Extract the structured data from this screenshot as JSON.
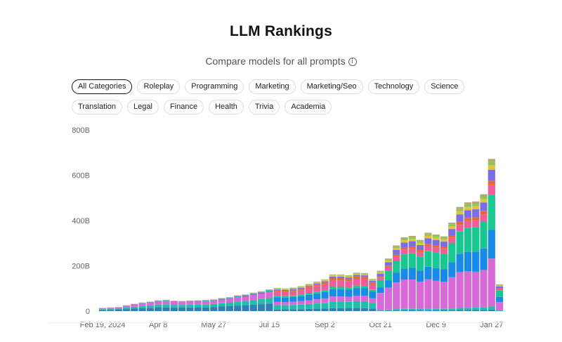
{
  "header": {
    "title": "LLM Rankings",
    "subtitle": "Compare models for all prompts",
    "info_icon": "i"
  },
  "filters": {
    "row1": [
      "All Categories",
      "Roleplay",
      "Programming",
      "Marketing",
      "Marketing/Seo",
      "Technology",
      "Science"
    ],
    "row2": [
      "Translation",
      "Legal",
      "Finance",
      "Health",
      "Trivia",
      "Academia"
    ],
    "active": "All Categories"
  },
  "chart_data": {
    "type": "bar",
    "stacked": true,
    "title": "",
    "xlabel": "",
    "ylabel": "",
    "ylim": [
      0,
      800
    ],
    "y_ticks": [
      0,
      200,
      400,
      600,
      800
    ],
    "y_tick_labels": [
      "0",
      "200B",
      "400B",
      "600B",
      "800B"
    ],
    "x_tick_labels": [
      {
        "index": 0,
        "label": "Feb 19, 2024"
      },
      {
        "index": 7,
        "label": "Apr 8"
      },
      {
        "index": 14,
        "label": "May 27"
      },
      {
        "index": 21,
        "label": "Jul 15"
      },
      {
        "index": 28,
        "label": "Sep 2"
      },
      {
        "index": 35,
        "label": "Oct 21"
      },
      {
        "index": 42,
        "label": "Dec 9"
      },
      {
        "index": 49,
        "label": "Jan 27"
      }
    ],
    "grid": false,
    "colors": [
      "#2d7fb8",
      "#1ec0a8",
      "#d86ad8",
      "#1a8ae8",
      "#18c890",
      "#ef5d9a",
      "#e46a3c",
      "#7a6ee8",
      "#e0c53a",
      "#8ac45c",
      "#b4a86a"
    ],
    "totals": [
      14,
      16,
      18,
      26,
      32,
      38,
      42,
      48,
      50,
      46,
      45,
      47,
      48,
      50,
      52,
      58,
      62,
      70,
      74,
      82,
      88,
      96,
      102,
      100,
      104,
      110,
      120,
      130,
      140,
      162,
      162,
      158,
      170,
      168,
      142,
      178,
      232,
      290,
      326,
      332,
      314,
      346,
      338,
      330,
      390,
      460,
      480,
      484,
      516,
      672,
      118
    ]
  }
}
